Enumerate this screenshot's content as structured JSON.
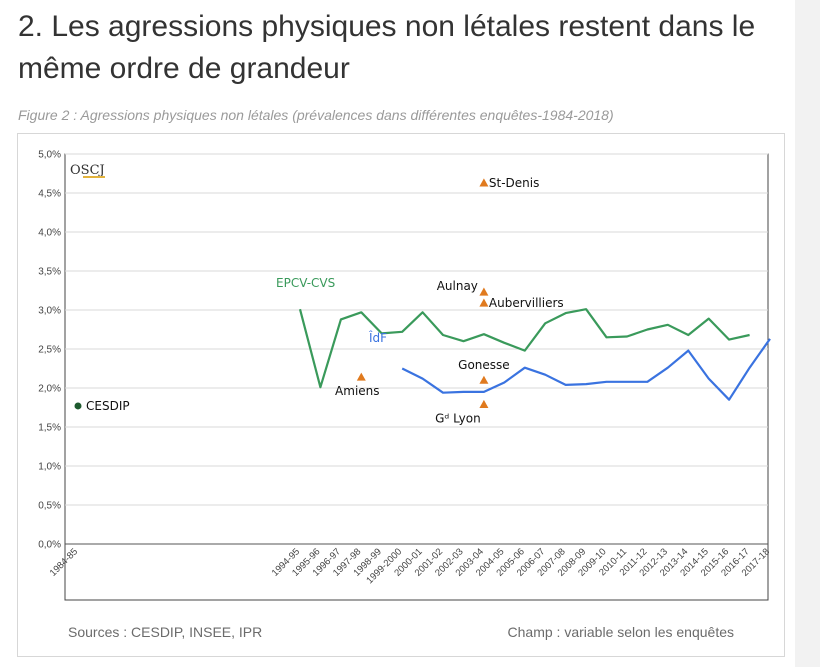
{
  "page": {
    "heading": "2. Les agressions physiques non létales restent dans le même ordre de grandeur",
    "caption": "Figure 2 : Agressions physiques non létales (prévalences dans différentes enquêtes-1984-2018)",
    "sources": "Sources : CESDIP, INSEE, IPR",
    "champ": "Champ : variable selon les enquêtes",
    "logo_text": "OSCJ"
  },
  "chart_data": {
    "type": "line",
    "title": "",
    "xlabel": "",
    "ylabel": "",
    "categories": [
      "1984-85",
      "1994-95",
      "1995-96",
      "1996-97",
      "1997-98",
      "1998-99",
      "1999-2000",
      "2000-01",
      "2001-02",
      "2002-03",
      "2003-04",
      "2004-05",
      "2005-06",
      "2006-07",
      "2007-08",
      "2008-09",
      "2009-10",
      "2010-11",
      "2011-12",
      "2012-13",
      "2013-14",
      "2014-15",
      "2015-16",
      "2016-17",
      "2017-18"
    ],
    "y_ticks": [
      "0,0%",
      "0,5%",
      "1,0%",
      "1,5%",
      "2,0%",
      "2,5%",
      "3,0%",
      "3,5%",
      "4,0%",
      "4,5%",
      "5,0%"
    ],
    "ylim": [
      0,
      5
    ],
    "grid": true,
    "series": [
      {
        "name": "EPCV-CVS",
        "color": "#3a9a5b",
        "values": [
          null,
          3.01,
          2.01,
          2.88,
          2.97,
          2.7,
          2.72,
          2.97,
          2.68,
          2.6,
          2.69,
          2.58,
          2.48,
          2.83,
          2.96,
          3.01,
          2.65,
          2.66,
          2.75,
          2.81,
          2.68,
          2.89,
          2.62,
          2.68,
          null
        ]
      },
      {
        "name": "ÎdF",
        "color": "#3a73e0",
        "values": [
          null,
          null,
          null,
          null,
          null,
          null,
          2.25,
          2.12,
          1.94,
          1.95,
          1.95,
          2.07,
          2.26,
          2.17,
          2.04,
          2.05,
          2.08,
          2.08,
          2.08,
          2.26,
          2.48,
          2.12,
          1.85,
          2.26,
          2.63
        ]
      }
    ],
    "points": [
      {
        "name": "CESDIP",
        "x": "1984-85",
        "y": 1.77,
        "marker": "circle",
        "color": "#1e5a2e"
      },
      {
        "name": "St-Denis",
        "x": "2003-04",
        "y": 4.63,
        "marker": "triangle",
        "color": "#e07a1e"
      },
      {
        "name": "Aulnay",
        "x": "2003-04",
        "y": 3.23,
        "marker": "triangle",
        "color": "#e07a1e"
      },
      {
        "name": "Aubervilliers",
        "x": "2003-04",
        "y": 3.09,
        "marker": "triangle",
        "color": "#e07a1e"
      },
      {
        "name": "Gonesse",
        "x": "2003-04",
        "y": 2.1,
        "marker": "triangle",
        "color": "#e07a1e"
      },
      {
        "name": "Amiens",
        "x": "1997-98",
        "y": 2.14,
        "marker": "triangle",
        "color": "#e07a1e"
      },
      {
        "name": "Gᵈ Lyon",
        "x": "2003-04",
        "y": 1.79,
        "marker": "triangle",
        "color": "#e07a1e"
      }
    ]
  }
}
